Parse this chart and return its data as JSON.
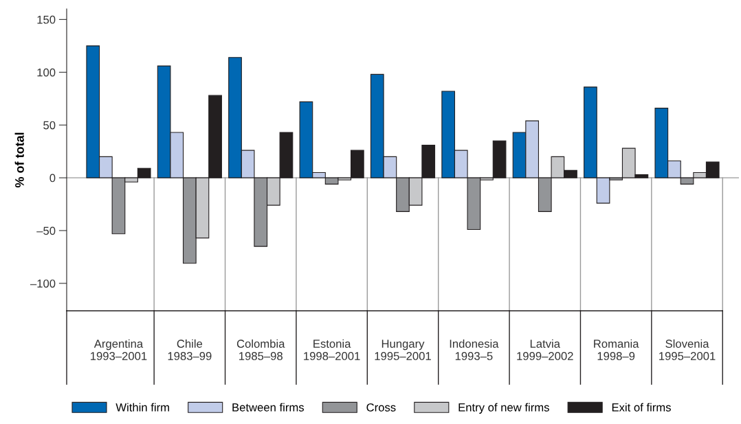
{
  "chart_data": {
    "type": "bar",
    "ylabel": "% of total",
    "categories": [
      "Argentina\n1993–2001",
      "Chile\n1983–99",
      "Colombia\n1985–98",
      "Estonia\n1998–2001",
      "Hungary\n1995–2001",
      "Indonesia\n1993–5",
      "Latvia\n1999–2002",
      "Romania\n1998–9",
      "Slovenia\n1995–2001"
    ],
    "series": [
      {
        "name": "Within firm",
        "color": "#0068b3",
        "values": [
          125,
          106,
          114,
          72,
          98,
          82,
          43,
          86,
          66
        ]
      },
      {
        "name": "Between firms",
        "color": "#c1cce9",
        "values": [
          20,
          43,
          26,
          5,
          20,
          26,
          54,
          -24,
          16
        ]
      },
      {
        "name": "Cross",
        "color": "#939598",
        "values": [
          -53,
          -81,
          -65,
          -6,
          -32,
          -49,
          -32,
          -2,
          -6
        ]
      },
      {
        "name": "Entry of new firms",
        "color": "#c7c8ca",
        "values": [
          -4,
          -57,
          -26,
          -2,
          -26,
          -2,
          20,
          28,
          5
        ]
      },
      {
        "name": "Exit of firms",
        "color": "#231f20",
        "values": [
          9,
          78,
          43,
          26,
          31,
          35,
          7,
          3,
          15
        ]
      }
    ],
    "ylim": [
      -126,
      160
    ],
    "yticks": [
      {
        "value": -100,
        "label": "–100"
      },
      {
        "value": -50,
        "label": "–50"
      },
      0,
      50,
      100,
      150
    ],
    "ref_lines": [
      {
        "axis": "y",
        "value": 0,
        "color": "#999999"
      }
    ],
    "legend": "bottom left"
  }
}
